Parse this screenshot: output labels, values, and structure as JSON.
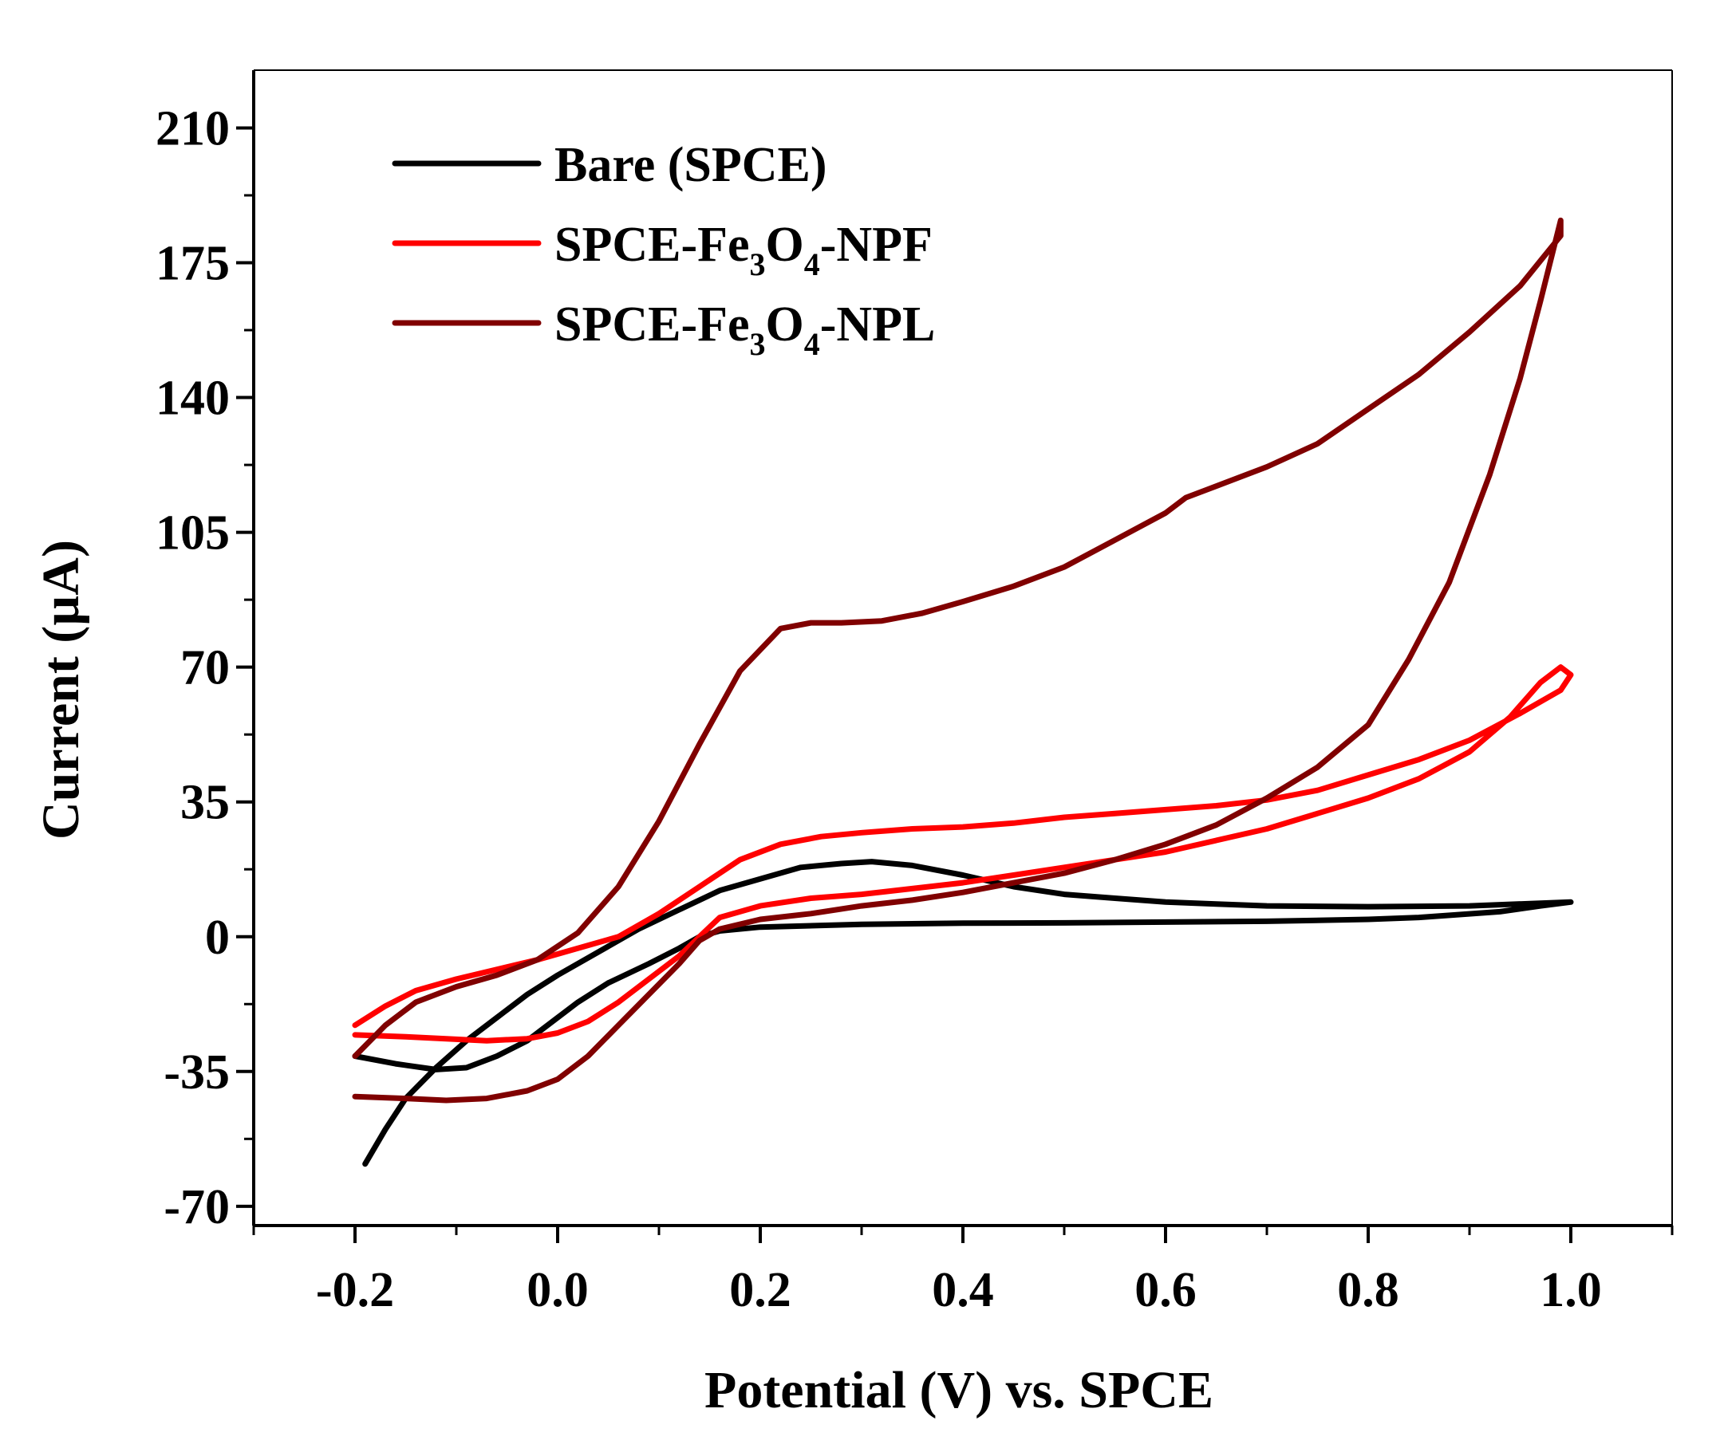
{
  "chart_data": {
    "type": "line",
    "title": "",
    "xlabel": "Potential (V) vs. SPCE",
    "ylabel": "Current (µA)",
    "xlim": [
      -0.3,
      1.1
    ],
    "ylim": [
      -75,
      225
    ],
    "xticks": [
      -0.2,
      0.0,
      0.2,
      0.4,
      0.6,
      0.8,
      1.0
    ],
    "xtick_labels": [
      "-0.2",
      "0.0",
      "0.2",
      "0.4",
      "0.6",
      "0.8",
      "1.0"
    ],
    "yticks": [
      -70,
      -35,
      0,
      35,
      70,
      105,
      140,
      175,
      210
    ],
    "ytick_labels": [
      "-70",
      "-35",
      "0",
      "35",
      "70",
      "105",
      "140",
      "175",
      "210"
    ],
    "legend_position": "top-left",
    "series": [
      {
        "name": "Bare (SPCE)",
        "legend": {
          "main": "Bare (SPCE)"
        },
        "color": "#000000",
        "points": [
          [
            -0.19,
            -59
          ],
          [
            -0.17,
            -50
          ],
          [
            -0.15,
            -42
          ],
          [
            -0.12,
            -34
          ],
          [
            -0.09,
            -27
          ],
          [
            -0.06,
            -21
          ],
          [
            -0.03,
            -15
          ],
          [
            0.0,
            -10
          ],
          [
            0.04,
            -4
          ],
          [
            0.08,
            2
          ],
          [
            0.12,
            7
          ],
          [
            0.16,
            12
          ],
          [
            0.2,
            15
          ],
          [
            0.24,
            18
          ],
          [
            0.28,
            19
          ],
          [
            0.31,
            19.5
          ],
          [
            0.35,
            18.5
          ],
          [
            0.4,
            16
          ],
          [
            0.45,
            13
          ],
          [
            0.5,
            11
          ],
          [
            0.55,
            10
          ],
          [
            0.6,
            9
          ],
          [
            0.65,
            8.5
          ],
          [
            0.7,
            8
          ],
          [
            0.8,
            7.8
          ],
          [
            0.9,
            8
          ],
          [
            1.0,
            9
          ],
          [
            0.97,
            8
          ],
          [
            0.93,
            6.5
          ],
          [
            0.85,
            5
          ],
          [
            0.8,
            4.5
          ],
          [
            0.7,
            4
          ],
          [
            0.6,
            3.8
          ],
          [
            0.5,
            3.6
          ],
          [
            0.4,
            3.5
          ],
          [
            0.3,
            3.2
          ],
          [
            0.2,
            2.5
          ],
          [
            0.16,
            1.5
          ],
          [
            0.14,
            0
          ],
          [
            0.12,
            -3
          ],
          [
            0.09,
            -7
          ],
          [
            0.05,
            -12
          ],
          [
            0.02,
            -17
          ],
          [
            0.0,
            -21
          ],
          [
            -0.03,
            -27
          ],
          [
            -0.06,
            -31
          ],
          [
            -0.09,
            -34
          ],
          [
            -0.12,
            -34.5
          ],
          [
            -0.16,
            -33
          ],
          [
            -0.2,
            -31
          ]
        ]
      },
      {
        "name": "SPCE-Fe3O4-NPF",
        "legend": {
          "main": "SPCE-Fe",
          "sub1": "3",
          "mid": "O",
          "sub2": "4",
          "tail": "-NPF"
        },
        "color": "#ff0000",
        "points": [
          [
            -0.2,
            -23
          ],
          [
            -0.17,
            -18
          ],
          [
            -0.14,
            -14
          ],
          [
            -0.1,
            -11
          ],
          [
            -0.06,
            -8.5
          ],
          [
            -0.02,
            -6
          ],
          [
            0.02,
            -3
          ],
          [
            0.06,
            0
          ],
          [
            0.1,
            6
          ],
          [
            0.14,
            13
          ],
          [
            0.18,
            20
          ],
          [
            0.22,
            24
          ],
          [
            0.26,
            26
          ],
          [
            0.3,
            27
          ],
          [
            0.35,
            28
          ],
          [
            0.4,
            28.5
          ],
          [
            0.45,
            29.5
          ],
          [
            0.5,
            31
          ],
          [
            0.55,
            32
          ],
          [
            0.6,
            33
          ],
          [
            0.65,
            34
          ],
          [
            0.7,
            35.5
          ],
          [
            0.75,
            38
          ],
          [
            0.8,
            42
          ],
          [
            0.85,
            46
          ],
          [
            0.9,
            51
          ],
          [
            0.95,
            58
          ],
          [
            0.99,
            64
          ],
          [
            1.0,
            68
          ],
          [
            0.99,
            70
          ],
          [
            0.97,
            66
          ],
          [
            0.94,
            57
          ],
          [
            0.9,
            48
          ],
          [
            0.85,
            41
          ],
          [
            0.8,
            36
          ],
          [
            0.75,
            32
          ],
          [
            0.7,
            28
          ],
          [
            0.65,
            25
          ],
          [
            0.6,
            22
          ],
          [
            0.55,
            20
          ],
          [
            0.5,
            18
          ],
          [
            0.45,
            16
          ],
          [
            0.4,
            14
          ],
          [
            0.35,
            12.5
          ],
          [
            0.3,
            11
          ],
          [
            0.25,
            10
          ],
          [
            0.2,
            8
          ],
          [
            0.16,
            5
          ],
          [
            0.14,
            0
          ],
          [
            0.12,
            -5
          ],
          [
            0.09,
            -11
          ],
          [
            0.06,
            -17
          ],
          [
            0.03,
            -22
          ],
          [
            0.0,
            -25
          ],
          [
            -0.03,
            -26.5
          ],
          [
            -0.07,
            -27
          ],
          [
            -0.11,
            -26.5
          ],
          [
            -0.15,
            -26
          ],
          [
            -0.2,
            -25.5
          ]
        ]
      },
      {
        "name": "SPCE-Fe3O4-NPL",
        "legend": {
          "main": "SPCE-Fe",
          "sub1": "3",
          "mid": "O",
          "sub2": "4",
          "tail": "-NPL"
        },
        "color": "#800000",
        "points": [
          [
            -0.2,
            -31
          ],
          [
            -0.17,
            -23
          ],
          [
            -0.14,
            -17
          ],
          [
            -0.1,
            -13
          ],
          [
            -0.06,
            -10
          ],
          [
            -0.02,
            -6
          ],
          [
            0.02,
            1
          ],
          [
            0.06,
            13
          ],
          [
            0.1,
            30
          ],
          [
            0.14,
            50
          ],
          [
            0.18,
            69
          ],
          [
            0.22,
            80
          ],
          [
            0.25,
            81.5
          ],
          [
            0.28,
            81.5
          ],
          [
            0.32,
            82
          ],
          [
            0.36,
            84
          ],
          [
            0.4,
            87
          ],
          [
            0.45,
            91
          ],
          [
            0.5,
            96
          ],
          [
            0.55,
            103
          ],
          [
            0.6,
            110
          ],
          [
            0.62,
            114
          ],
          [
            0.64,
            116
          ],
          [
            0.7,
            122
          ],
          [
            0.75,
            128
          ],
          [
            0.8,
            137
          ],
          [
            0.85,
            146
          ],
          [
            0.9,
            157
          ],
          [
            0.95,
            169
          ],
          [
            0.99,
            182
          ],
          [
            0.99,
            186
          ],
          [
            0.97,
            165
          ],
          [
            0.95,
            145
          ],
          [
            0.92,
            120
          ],
          [
            0.88,
            92
          ],
          [
            0.84,
            72
          ],
          [
            0.8,
            55
          ],
          [
            0.75,
            44
          ],
          [
            0.7,
            36
          ],
          [
            0.65,
            29
          ],
          [
            0.6,
            24
          ],
          [
            0.55,
            20
          ],
          [
            0.5,
            16.5
          ],
          [
            0.45,
            14
          ],
          [
            0.4,
            11.5
          ],
          [
            0.35,
            9.5
          ],
          [
            0.3,
            8
          ],
          [
            0.25,
            6
          ],
          [
            0.2,
            4.5
          ],
          [
            0.16,
            2
          ],
          [
            0.14,
            -1
          ],
          [
            0.12,
            -7
          ],
          [
            0.09,
            -15
          ],
          [
            0.06,
            -23
          ],
          [
            0.03,
            -31
          ],
          [
            0.0,
            -37
          ],
          [
            -0.03,
            -40
          ],
          [
            -0.07,
            -42
          ],
          [
            -0.11,
            -42.5
          ],
          [
            -0.15,
            -42
          ],
          [
            -0.2,
            -41.5
          ]
        ]
      }
    ]
  }
}
